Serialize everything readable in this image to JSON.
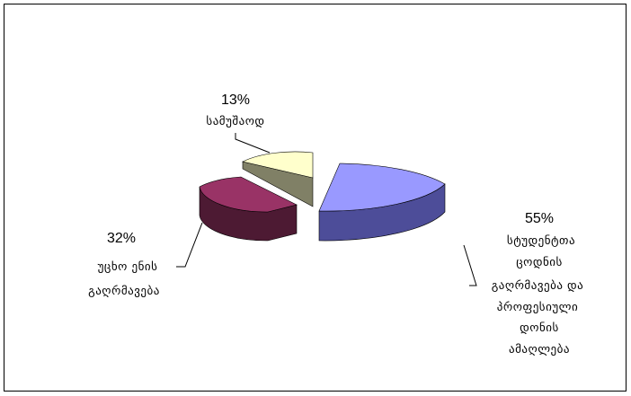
{
  "chart_data": {
    "type": "pie",
    "style": "3d-exploded",
    "slices": [
      {
        "percent_label": "55%",
        "value": 55,
        "lines": [
          "სტუდენტთა",
          "ცოდნის",
          "გაღრმავება და",
          "პროფესიული",
          "დონის",
          "ამაღლება"
        ],
        "top_color": "#9999ff",
        "side_color": "#4d4d99"
      },
      {
        "percent_label": "32%",
        "value": 32,
        "lines": [
          "უცხო ენის",
          "გაღრმავება"
        ],
        "top_color": "#993366",
        "side_color": "#4d1a33"
      },
      {
        "percent_label": "13%",
        "value": 13,
        "lines": [
          "სამუშაოდ"
        ],
        "top_color": "#ffffcc",
        "side_color": "#808066"
      }
    ]
  }
}
